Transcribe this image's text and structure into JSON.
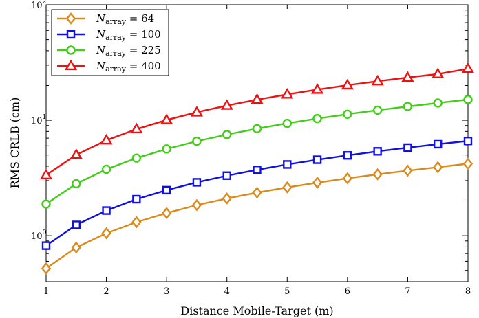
{
  "chart_data": {
    "type": "line",
    "xlabel": "Distance Mobile-Target (m)",
    "ylabel": "RMS CRLB (cm)",
    "xlim": [
      1,
      8
    ],
    "ylim": [
      0.4,
      100
    ],
    "yscale": "log",
    "x_ticks": [
      "1",
      "2",
      "3",
      "4",
      "5",
      "6",
      "7",
      "8"
    ],
    "y_ticks": [
      {
        "base": "10",
        "exp": "0",
        "value": 1
      },
      {
        "base": "10",
        "exp": "1",
        "value": 10
      },
      {
        "base": "10",
        "exp": "2",
        "value": 100
      }
    ],
    "legend_position": "top-left",
    "x": [
      1,
      1.5,
      2,
      2.5,
      3,
      3.5,
      4,
      4.5,
      5,
      5.5,
      6,
      6.5,
      7,
      7.5,
      8
    ],
    "series": [
      {
        "name_var": "N",
        "name_sub": "array",
        "name_value": "= 64",
        "color": "#d98a1a",
        "marker": "diamond",
        "values": [
          0.52,
          0.79,
          1.05,
          1.31,
          1.57,
          1.84,
          2.1,
          2.36,
          2.62,
          2.88,
          3.14,
          3.4,
          3.66,
          3.92,
          4.2
        ]
      },
      {
        "name_var": "N",
        "name_sub": "array",
        "name_value": "= 100",
        "color": "#1010e0",
        "marker": "square",
        "values": [
          0.82,
          1.24,
          1.65,
          2.07,
          2.48,
          2.9,
          3.31,
          3.72,
          4.14,
          4.55,
          4.96,
          5.38,
          5.79,
          6.2,
          6.62
        ]
      },
      {
        "name_var": "N",
        "name_sub": "array",
        "name_value": "= 225",
        "color": "#44cc1a",
        "marker": "circle",
        "values": [
          1.88,
          2.82,
          3.76,
          4.7,
          5.64,
          6.58,
          7.52,
          8.46,
          9.4,
          10.34,
          11.28,
          12.22,
          13.16,
          14.1,
          15.1
        ]
      },
      {
        "name_var": "N",
        "name_sub": "array",
        "name_value": "= 400",
        "color": "#ee1111",
        "marker": "triangle",
        "values": [
          3.35,
          5.02,
          6.7,
          8.37,
          10.05,
          11.72,
          13.4,
          15.07,
          16.75,
          18.42,
          20.1,
          21.77,
          23.45,
          25.12,
          27.9
        ]
      }
    ]
  }
}
